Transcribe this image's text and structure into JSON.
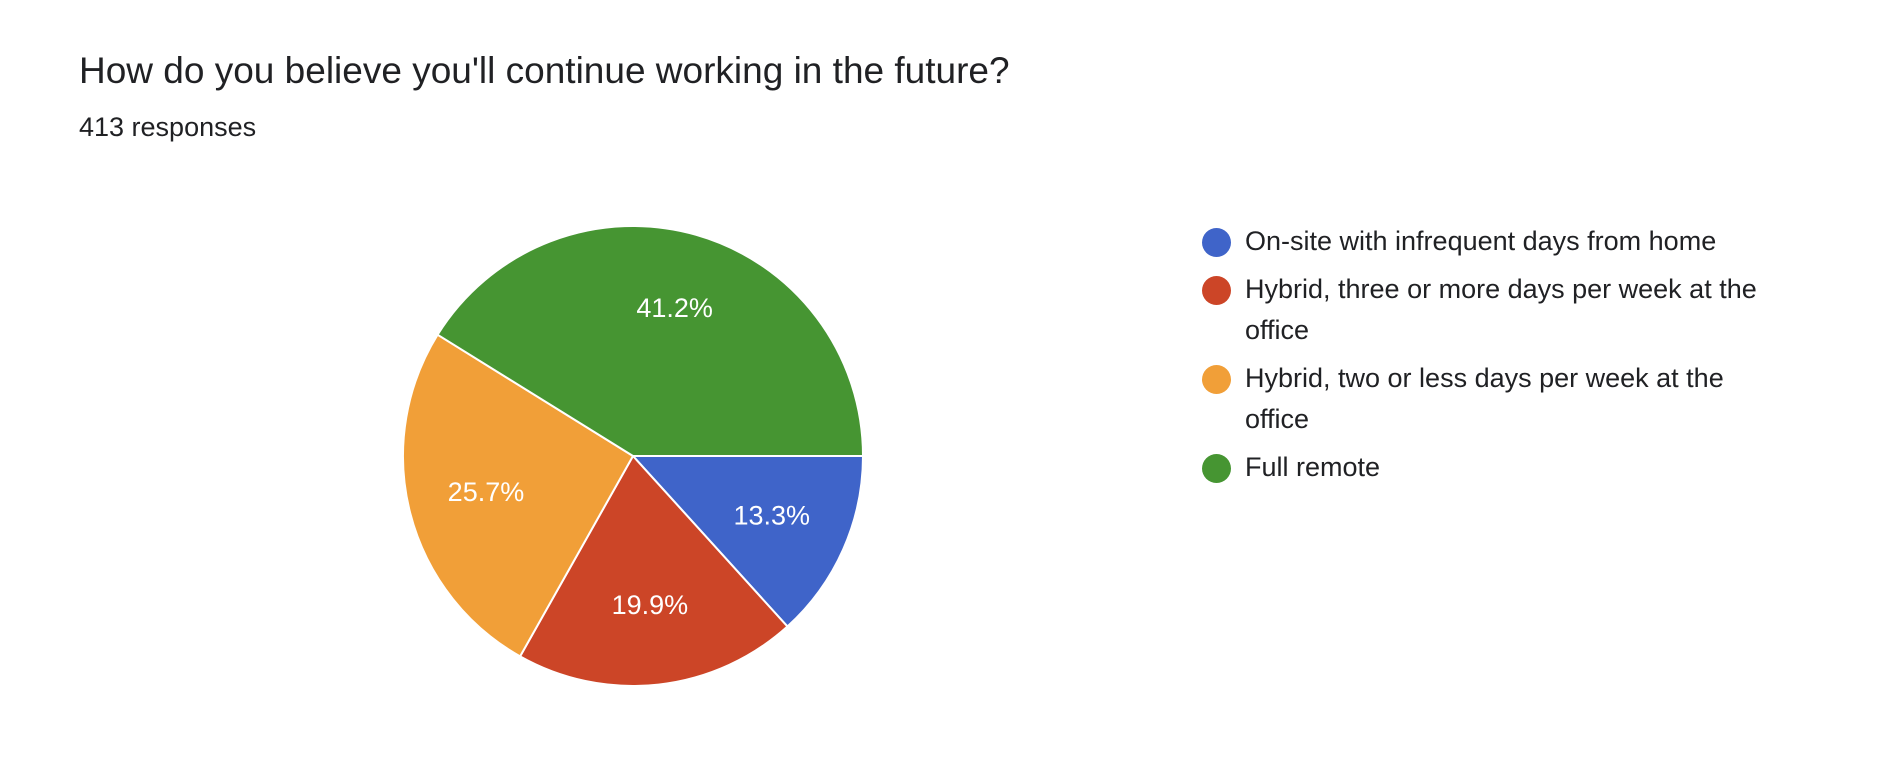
{
  "chart_data": {
    "type": "pie",
    "title": "How do you believe you'll continue working in the future?",
    "subtitle": "413 responses",
    "categories": [
      "On-site with infrequent days from home",
      "Hybrid, three or more days per week at the office",
      "Hybrid, two or less days per week at the office",
      "Full remote"
    ],
    "values": [
      13.3,
      19.9,
      25.7,
      41.2
    ],
    "value_labels": [
      "13.3%",
      "19.9%",
      "25.7%",
      "41.2%"
    ],
    "colors": [
      "#3f64c9",
      "#cc4527",
      "#f19f38",
      "#469532"
    ]
  }
}
